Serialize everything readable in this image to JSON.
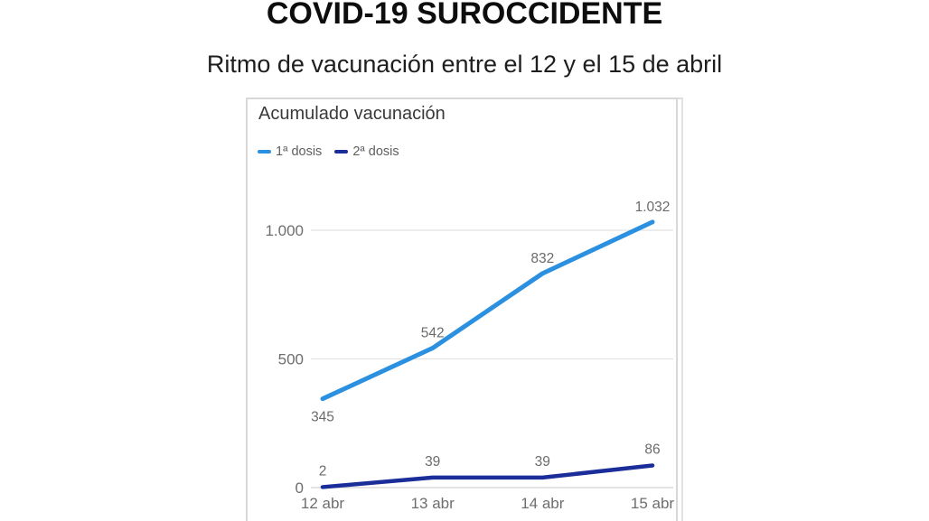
{
  "page": {
    "title": "COVID-19 SUROCCIDENTE",
    "subtitle": "Ritmo de vacunación entre el 12 y el 15 de abril"
  },
  "chart_data": {
    "type": "line",
    "title": "Acumulado vacunación",
    "categories": [
      "12 abr",
      "13 abr",
      "14 abr",
      "15 abr"
    ],
    "series": [
      {
        "name": "1ª dosis",
        "color": "#2b90e0",
        "values": [
          345,
          542,
          832,
          1032
        ],
        "point_labels": [
          "345",
          "542",
          "832",
          "1.032"
        ],
        "label_side": [
          "below",
          "above",
          "above",
          "above"
        ]
      },
      {
        "name": "2ª dosis",
        "color": "#1b2d99",
        "values": [
          2,
          39,
          39,
          86
        ],
        "point_labels": [
          "2",
          "39",
          "39",
          "86"
        ],
        "label_side": [
          "above",
          "above",
          "above",
          "above"
        ]
      }
    ],
    "yticks": [
      {
        "value": 0,
        "label": "0"
      },
      {
        "value": 500,
        "label": "500"
      },
      {
        "value": 1000,
        "label": "1.000"
      }
    ],
    "ylim": [
      0,
      1150
    ],
    "grid": true,
    "legend_position": "top-left",
    "colors": {
      "grid_line": "#e2e2e2",
      "zero_line": "#d2d2d2",
      "tick_text": "#6e6e6e",
      "point_label_text": "#6b6b6b"
    }
  }
}
